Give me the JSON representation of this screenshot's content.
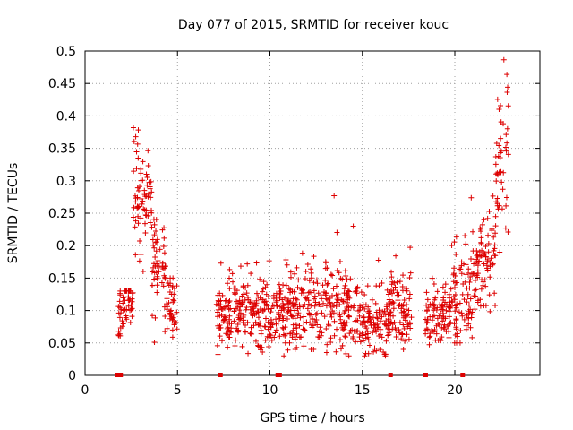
{
  "chart_data": {
    "type": "scatter",
    "title": "Day 077 of 2015, SRMTID for receiver kouc",
    "xlabel": "GPS time / hours",
    "ylabel": "SRMTID / TECUs",
    "xlim": [
      0,
      24.6
    ],
    "ylim": [
      0,
      0.5
    ],
    "grid": true,
    "marker": "+",
    "series_color": "#dd0000",
    "x_ticks": [
      0,
      5,
      10,
      15,
      20
    ],
    "x_tick_labels": [
      "0",
      "5",
      "10",
      "15",
      "20"
    ],
    "y_ticks": [
      0,
      0.05,
      0.1,
      0.15,
      0.2,
      0.25,
      0.3,
      0.35,
      0.4,
      0.45,
      0.5
    ],
    "y_tick_labels": [
      "0",
      "0.05",
      "0.1",
      "0.15",
      "0.2",
      "0.25",
      "0.3",
      "0.35",
      "0.4",
      "0.45",
      "0.5"
    ],
    "baseline_markers_x": [
      1.7,
      1.9,
      7.3,
      10.4,
      10.5,
      16.5,
      18.4,
      20.4
    ],
    "segments": [
      {
        "x_start": 1.8,
        "x_end": 2.6,
        "y_min": 0.03,
        "y_max": 0.13,
        "peak_x": 2.4,
        "peak_y": 0.12,
        "spread": 0.025
      },
      {
        "x_start": 2.6,
        "x_end": 3.2,
        "y_min": 0.1,
        "y_max": 0.4,
        "peak_x": 2.85,
        "peak_y": 0.3,
        "spread": 0.07
      },
      {
        "x_start": 3.2,
        "x_end": 3.6,
        "y_min": 0.15,
        "y_max": 0.35,
        "peak_x": 3.4,
        "peak_y": 0.29,
        "spread": 0.04
      },
      {
        "x_start": 3.6,
        "x_end": 4.4,
        "y_min": 0.05,
        "y_max": 0.26,
        "peak_x": 3.8,
        "peak_y": 0.17,
        "spread": 0.05
      },
      {
        "x_start": 4.4,
        "x_end": 5.0,
        "y_min": 0.05,
        "y_max": 0.15,
        "peak_x": 4.6,
        "peak_y": 0.11,
        "spread": 0.025
      },
      {
        "x_start": 7.1,
        "x_end": 9.0,
        "y_min": 0.03,
        "y_max": 0.19,
        "peak_x": 8.4,
        "peak_y": 0.1,
        "spread": 0.035
      },
      {
        "x_start": 9.0,
        "x_end": 11.0,
        "y_min": 0.03,
        "y_max": 0.19,
        "peak_x": 10.0,
        "peak_y": 0.09,
        "spread": 0.03
      },
      {
        "x_start": 11.0,
        "x_end": 12.8,
        "y_min": 0.04,
        "y_max": 0.27,
        "peak_x": 11.6,
        "peak_y": 0.1,
        "spread": 0.04
      },
      {
        "x_start": 12.8,
        "x_end": 14.8,
        "y_min": 0.03,
        "y_max": 0.29,
        "peak_x": 13.9,
        "peak_y": 0.1,
        "spread": 0.045
      },
      {
        "x_start": 14.8,
        "x_end": 16.5,
        "y_min": 0.03,
        "y_max": 0.18,
        "peak_x": 15.5,
        "peak_y": 0.08,
        "spread": 0.03
      },
      {
        "x_start": 16.5,
        "x_end": 17.7,
        "y_min": 0.04,
        "y_max": 0.2,
        "peak_x": 17.0,
        "peak_y": 0.1,
        "spread": 0.035
      },
      {
        "x_start": 18.4,
        "x_end": 19.8,
        "y_min": 0.02,
        "y_max": 0.15,
        "peak_x": 19.2,
        "peak_y": 0.1,
        "spread": 0.025
      },
      {
        "x_start": 19.8,
        "x_end": 21.0,
        "y_min": 0.05,
        "y_max": 0.29,
        "peak_x": 20.5,
        "peak_y": 0.12,
        "spread": 0.05
      },
      {
        "x_start": 21.0,
        "x_end": 22.2,
        "y_min": 0.08,
        "y_max": 0.3,
        "peak_x": 21.7,
        "peak_y": 0.18,
        "spread": 0.05
      },
      {
        "x_start": 22.2,
        "x_end": 22.9,
        "y_min": 0.19,
        "y_max": 0.49,
        "peak_x": 22.8,
        "peak_y": 0.36,
        "spread": 0.08
      }
    ]
  }
}
